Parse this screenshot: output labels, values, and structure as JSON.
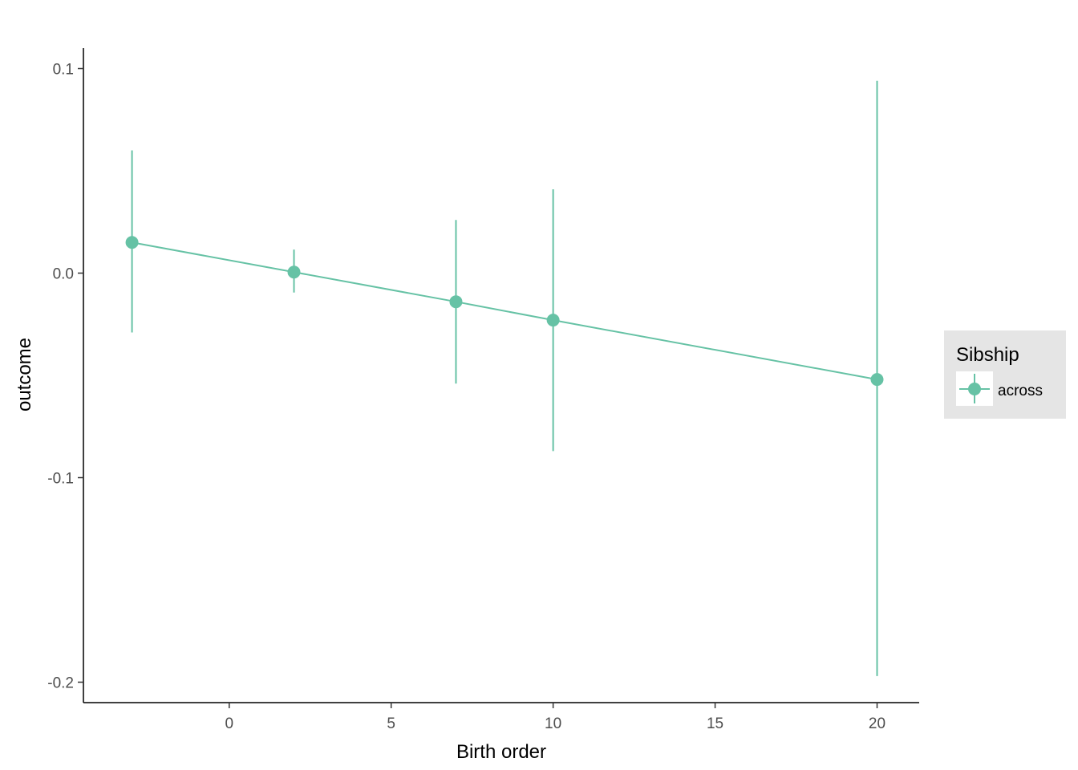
{
  "chart_data": {
    "type": "scatter",
    "xlabel": "Birth order",
    "ylabel": "outcome",
    "xlim": [
      -4.5,
      21.3
    ],
    "ylim": [
      -0.21,
      0.11
    ],
    "x_ticks": [
      0,
      5,
      10,
      15,
      20
    ],
    "x_tick_labels": [
      "0",
      "5",
      "10",
      "15",
      "20"
    ],
    "y_ticks": [
      0.1,
      0.0,
      -0.1,
      -0.2
    ],
    "y_tick_labels": [
      "0.1",
      "0.0",
      "-0.1",
      "-0.2"
    ],
    "grid": false,
    "legend": {
      "title": "Sibship",
      "placement": "right",
      "entries": [
        "across"
      ]
    },
    "series": [
      {
        "name": "across",
        "color": "#66c2a5",
        "connect_points": true,
        "points": [
          {
            "x": -3,
            "y": 0.015,
            "ymin": -0.029,
            "ymax": 0.06
          },
          {
            "x": 2,
            "y": 0.0005,
            "ymin": -0.0095,
            "ymax": 0.0115
          },
          {
            "x": 7,
            "y": -0.014,
            "ymin": -0.054,
            "ymax": 0.026
          },
          {
            "x": 10,
            "y": -0.023,
            "ymin": -0.087,
            "ymax": 0.041
          },
          {
            "x": 20,
            "y": -0.052,
            "ymin": -0.197,
            "ymax": 0.094
          }
        ]
      }
    ]
  }
}
